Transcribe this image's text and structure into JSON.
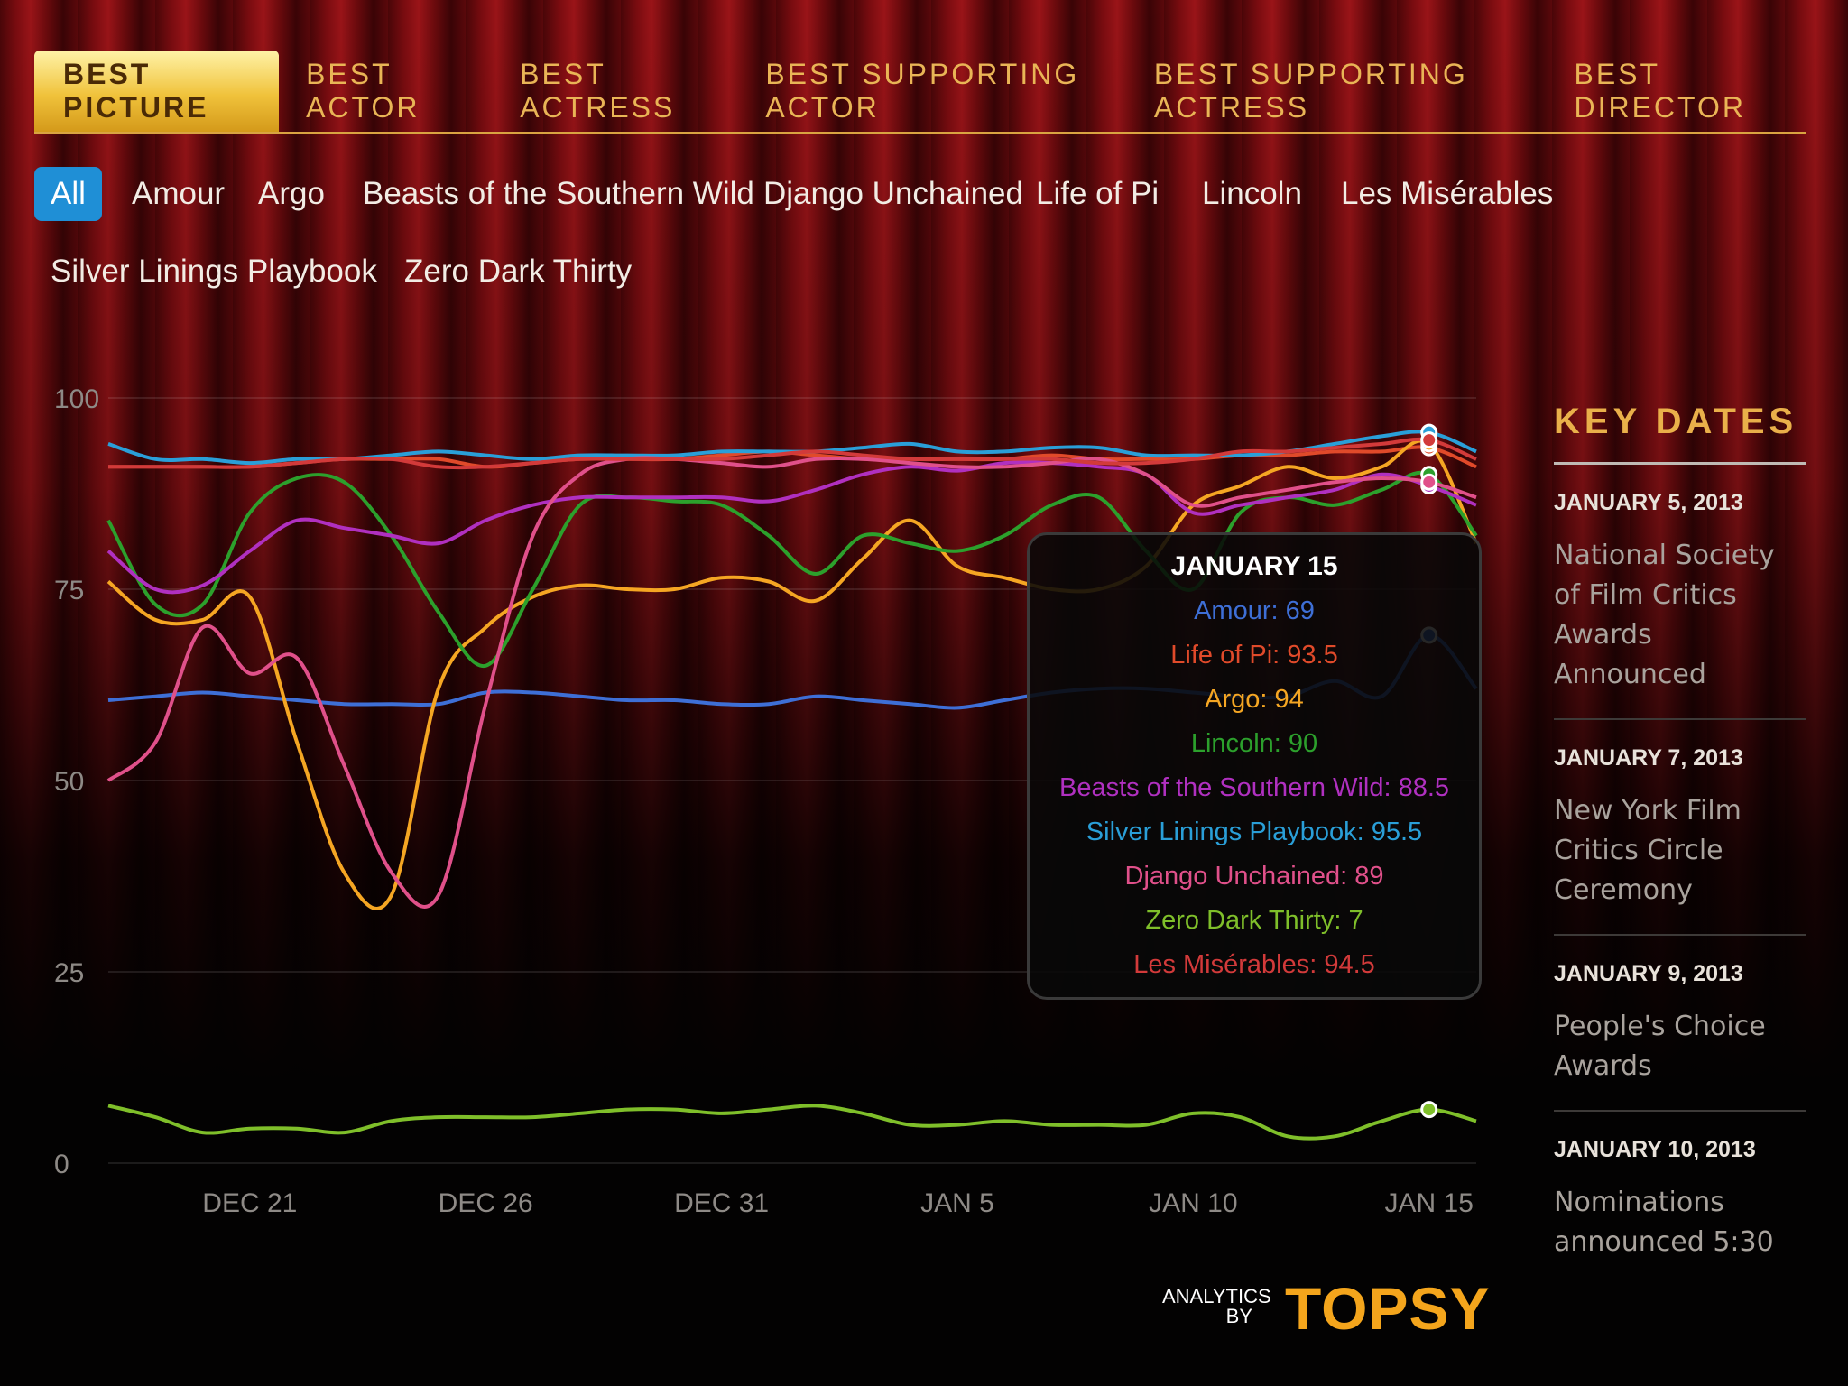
{
  "award_tabs": [
    "BEST PICTURE",
    "BEST ACTOR",
    "BEST ACTRESS",
    "BEST SUPPORTING ACTOR",
    "BEST SUPPORTING ACTRESS",
    "BEST DIRECTOR"
  ],
  "active_award": "BEST PICTURE",
  "films": [
    "All",
    "Amour",
    "Argo",
    "Beasts of the Southern Wild",
    "Django Unchained",
    "Life of Pi",
    "Lincoln",
    "Les Misérables",
    "Silver Linings Playbook",
    "Zero Dark Thirty"
  ],
  "active_film": "All",
  "tooltip": {
    "title": "JANUARY 15",
    "rows": [
      {
        "text": "Amour: 69",
        "color": "#3e6fd6"
      },
      {
        "text": "Life of Pi: 93.5",
        "color": "#e04a2a"
      },
      {
        "text": "Argo: 94",
        "color": "#f5a623"
      },
      {
        "text": "Lincoln: 90",
        "color": "#2ca02c"
      },
      {
        "text": "Beasts of the Southern Wild: 88.5",
        "color": "#b030c0"
      },
      {
        "text": "Silver Linings Playbook: 95.5",
        "color": "#2a9fd8"
      },
      {
        "text": "Django Unchained: 89",
        "color": "#e0508a"
      },
      {
        "text": "Zero Dark Thirty: 7",
        "color": "#7fbf2a"
      },
      {
        "text": "Les Misérables: 94.5",
        "color": "#d23a3a"
      }
    ]
  },
  "key_dates": {
    "title": "KEY DATES",
    "items": [
      {
        "date": "JANUARY 5, 2013",
        "text": "National Society of Film Critics Awards Announced"
      },
      {
        "date": "JANUARY 7, 2013",
        "text": "New York Film Critics Circle Ceremony"
      },
      {
        "date": "JANUARY 9, 2013",
        "text": "People's Choice Awards"
      },
      {
        "date": "JANUARY 10, 2013",
        "text": "Nominations announced 5:30"
      }
    ]
  },
  "logo": {
    "small": "ANALYTICS BY",
    "big": "TOPSY"
  },
  "chart_data": {
    "type": "line",
    "title": "",
    "xlabel": "",
    "ylabel": "",
    "ylim": [
      0,
      100
    ],
    "yticks": [
      0,
      25,
      50,
      75,
      100
    ],
    "xticks": [
      "DEC 21",
      "DEC 26",
      "DEC 31",
      "JAN 5",
      "JAN 10",
      "JAN 15"
    ],
    "x": [
      "Dec 18",
      "Dec 19",
      "Dec 20",
      "Dec 21",
      "Dec 22",
      "Dec 23",
      "Dec 24",
      "Dec 25",
      "Dec 26",
      "Dec 27",
      "Dec 28",
      "Dec 29",
      "Dec 30",
      "Dec 31",
      "Jan 1",
      "Jan 2",
      "Jan 3",
      "Jan 4",
      "Jan 5",
      "Jan 6",
      "Jan 7",
      "Jan 8",
      "Jan 9",
      "Jan 10",
      "Jan 11",
      "Jan 12",
      "Jan 13",
      "Jan 14",
      "Jan 15",
      "Jan 16"
    ],
    "highlight_index": 28,
    "grid": true,
    "series": [
      {
        "name": "Amour",
        "color": "#3e6fd6",
        "values": [
          60.5,
          61,
          61.5,
          61,
          60.5,
          60,
          60,
          60,
          61.5,
          61.5,
          61,
          60.5,
          60.5,
          60,
          60,
          61,
          60.5,
          60,
          59.5,
          60.5,
          61.5,
          62,
          62,
          61.5,
          61,
          61,
          63,
          61,
          69,
          62
        ]
      },
      {
        "name": "Life of Pi",
        "color": "#e04a2a",
        "values": [
          91,
          91,
          91,
          91,
          91.5,
          92,
          92,
          92,
          91,
          91.5,
          92,
          92,
          92,
          92.5,
          93,
          92.5,
          92,
          92,
          92,
          92,
          92.5,
          92,
          92,
          92,
          92.5,
          92.5,
          93,
          93,
          93.5,
          91
        ]
      },
      {
        "name": "Argo",
        "color": "#f5a623",
        "values": [
          76,
          71,
          71,
          74,
          55,
          38,
          35,
          62,
          70,
          74,
          75.5,
          75,
          75,
          76.5,
          76,
          73.5,
          79,
          84,
          78,
          76.5,
          75,
          75,
          78,
          86,
          88.5,
          91,
          89.5,
          91,
          94,
          81
        ]
      },
      {
        "name": "Lincoln",
        "color": "#2ca02c",
        "values": [
          84,
          73,
          73,
          85,
          89.5,
          89,
          82,
          72,
          65,
          75,
          86,
          87,
          86.5,
          86,
          82,
          77,
          82,
          81,
          80,
          82,
          86,
          87,
          80,
          75,
          85,
          87,
          86,
          88,
          90,
          82
        ]
      },
      {
        "name": "Beasts of the Southern Wild",
        "color": "#b030c0",
        "values": [
          80,
          75,
          75.5,
          80,
          84,
          83,
          82,
          81,
          84,
          86,
          87,
          87,
          87,
          87,
          86.5,
          88,
          90,
          91,
          90.5,
          91.5,
          91.5,
          91,
          90,
          85,
          86,
          87,
          88,
          90,
          88.5,
          86
        ]
      },
      {
        "name": "Silver Linings Playbook",
        "color": "#2a9fd8",
        "values": [
          94,
          92,
          92,
          91.5,
          92,
          92,
          92.5,
          93,
          92.5,
          92,
          92.5,
          92.5,
          92.5,
          93,
          93,
          93,
          93.5,
          94,
          93,
          93,
          93.5,
          93.5,
          92.5,
          92.5,
          92.5,
          93,
          94,
          95,
          95.5,
          93
        ]
      },
      {
        "name": "Django Unchained",
        "color": "#e0508a",
        "values": [
          50,
          55,
          70,
          64,
          66,
          52,
          38,
          35,
          60,
          82,
          90,
          92,
          92,
          91.5,
          91,
          92,
          92,
          91.5,
          91,
          91,
          91.5,
          92,
          90,
          86,
          87,
          88,
          89,
          89.5,
          89,
          87
        ]
      },
      {
        "name": "Zero Dark Thirty",
        "color": "#7fbf2a",
        "values": [
          7.5,
          6,
          4,
          4.5,
          4.5,
          4,
          5.5,
          6,
          6,
          6,
          6.5,
          7,
          7,
          6.5,
          7,
          7.5,
          6.5,
          5,
          5,
          5.5,
          5,
          5,
          5,
          6.5,
          6,
          3.5,
          3.5,
          5.5,
          7,
          5.5
        ]
      },
      {
        "name": "Les Misérables",
        "color": "#d23a3a",
        "values": [
          91,
          91,
          91,
          91,
          91.5,
          92,
          92,
          91,
          91,
          91.5,
          92,
          92,
          92,
          92,
          92.5,
          93,
          92.5,
          92,
          92,
          92,
          92,
          91.5,
          91.5,
          92,
          93,
          93,
          93.5,
          94,
          94.5,
          92
        ]
      }
    ]
  }
}
